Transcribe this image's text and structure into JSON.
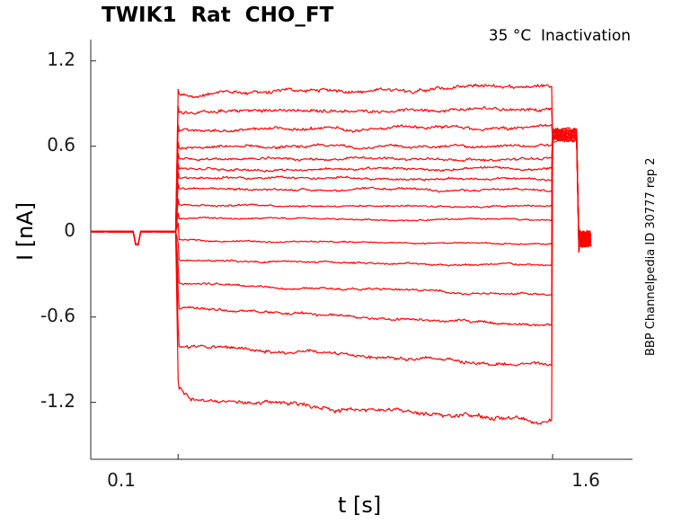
{
  "chart_data": {
    "type": "line",
    "title": "TWIK1  Rat  CHO_FT",
    "subtitle": "35 °C  Inactivation",
    "side_note": "BBP Channelpedia ID 30777 rep 2",
    "xlabel": "t [s]",
    "ylabel": "I [nA]",
    "xlim": [
      -0.25,
      1.92
    ],
    "ylim": [
      -1.6,
      1.35
    ],
    "x_ticks": [
      {
        "value": 0.1,
        "label": "0.1"
      },
      {
        "value": 1.6,
        "label": "1.6"
      }
    ],
    "y_ticks": [
      {
        "value": 1.2,
        "label": "1.2"
      },
      {
        "value": 0.6,
        "label": "0.6"
      },
      {
        "value": 0,
        "label": "0"
      },
      {
        "value": -0.6,
        "label": "-0.6"
      },
      {
        "value": -1.2,
        "label": "-1.2"
      }
    ],
    "trace_color": "#ff0000",
    "stimulus": {
      "baseline_start": -0.25,
      "step_start": 0.1,
      "step_end": 1.6,
      "tail_end": 1.755
    },
    "series": [
      {
        "name": "trace-1",
        "start": 0.96,
        "end": 1.03
      },
      {
        "name": "trace-2",
        "start": 0.84,
        "end": 0.87
      },
      {
        "name": "trace-3",
        "start": 0.71,
        "end": 0.73
      },
      {
        "name": "trace-4",
        "start": 0.59,
        "end": 0.6
      },
      {
        "name": "trace-5",
        "start": 0.51,
        "end": 0.51
      },
      {
        "name": "trace-6",
        "start": 0.44,
        "end": 0.44
      },
      {
        "name": "trace-7",
        "start": 0.38,
        "end": 0.37
      },
      {
        "name": "trace-8",
        "start": 0.3,
        "end": 0.29
      },
      {
        "name": "trace-9",
        "start": 0.19,
        "end": 0.18
      },
      {
        "name": "trace-10",
        "start": 0.09,
        "end": 0.08
      },
      {
        "name": "trace-11",
        "start": -0.06,
        "end": -0.09
      },
      {
        "name": "trace-12",
        "start": -0.2,
        "end": -0.24
      },
      {
        "name": "trace-13",
        "start": -0.36,
        "end": -0.45
      },
      {
        "name": "trace-14",
        "start": -0.54,
        "end": -0.66
      },
      {
        "name": "trace-15",
        "start": -0.8,
        "end": -0.94
      },
      {
        "name": "trace-16",
        "start": -1.17,
        "end": -1.33
      }
    ]
  }
}
